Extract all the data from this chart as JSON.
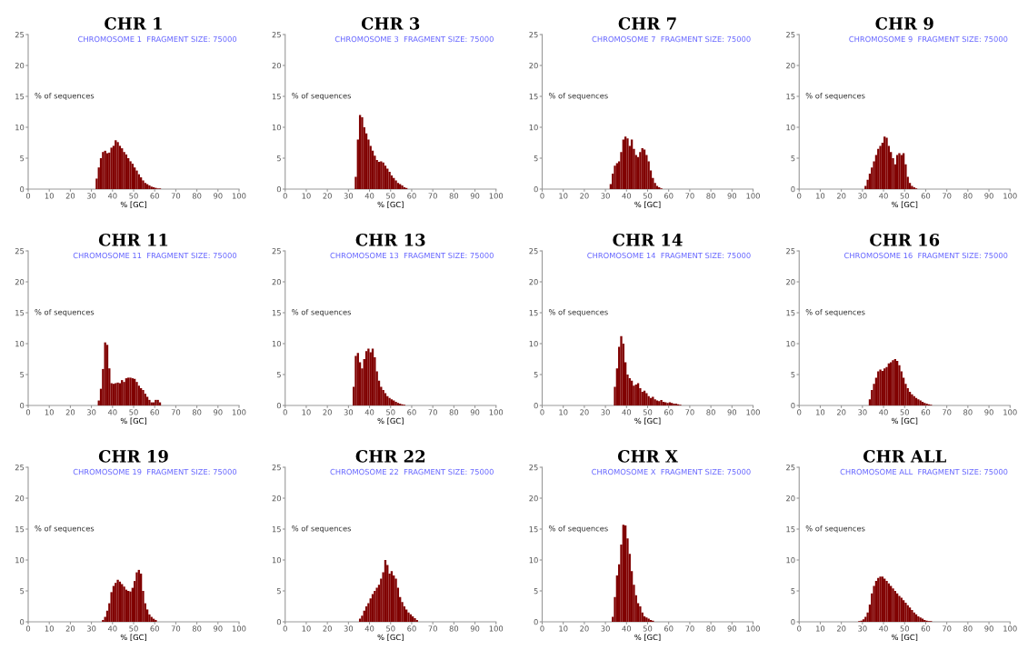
{
  "chart_data": [
    {
      "type": "histogram",
      "title": "CHR 1",
      "subtitle": "CHROMOSOME 1  FRAGMENT SIZE: 75000",
      "xlabel": "% [GC]",
      "ylabel": "% of sequences",
      "color": "#800000",
      "xlim": [
        0,
        100
      ],
      "xticks": [
        0,
        10,
        20,
        30,
        40,
        50,
        60,
        70,
        80,
        90,
        100
      ],
      "ylim": [
        0,
        25
      ],
      "yticks": [
        0,
        5,
        10,
        15,
        20,
        25
      ],
      "grid": false,
      "bins": [
        32,
        33,
        34,
        35,
        36,
        37,
        38,
        39,
        40,
        41,
        42,
        43,
        44,
        45,
        46,
        47,
        48,
        49,
        50,
        51,
        52,
        53,
        54,
        55,
        56,
        57,
        58,
        59,
        60,
        61,
        62,
        63
      ],
      "values": [
        1.7,
        3.5,
        5.0,
        6.0,
        6.2,
        5.8,
        5.9,
        6.7,
        7.0,
        7.9,
        7.6,
        7.0,
        6.6,
        6.0,
        5.6,
        5.0,
        4.5,
        4.1,
        3.5,
        3.0,
        2.4,
        1.9,
        1.4,
        1.0,
        0.8,
        0.6,
        0.4,
        0.3,
        0.2,
        0.1,
        0.1
      ]
    },
    {
      "type": "histogram",
      "title": "CHR 3",
      "subtitle": "CHROMOSOME 3  FRAGMENT SIZE: 75000",
      "xlabel": "% [GC]",
      "ylabel": "% of sequences",
      "color": "#800000",
      "xlim": [
        0,
        100
      ],
      "xticks": [
        0,
        10,
        20,
        30,
        40,
        50,
        60,
        70,
        80,
        90,
        100
      ],
      "ylim": [
        0,
        25
      ],
      "yticks": [
        0,
        5,
        10,
        15,
        20,
        25
      ],
      "grid": false,
      "bins": [
        33,
        34,
        35,
        36,
        37,
        38,
        39,
        40,
        41,
        42,
        43,
        44,
        45,
        46,
        47,
        48,
        49,
        50,
        51,
        52,
        53,
        54,
        55,
        56,
        57,
        58
      ],
      "values": [
        2.0,
        8.0,
        12.0,
        11.6,
        10.0,
        9.0,
        8.0,
        7.0,
        6.2,
        5.4,
        4.7,
        4.4,
        4.5,
        4.3,
        3.8,
        3.3,
        2.8,
        2.2,
        1.8,
        1.4,
        1.0,
        0.8,
        0.6,
        0.3,
        0.2
      ]
    },
    {
      "type": "histogram",
      "title": "CHR 7",
      "subtitle": "CHROMOSOME 7  FRAGMENT SIZE: 75000",
      "xlabel": "% [GC]",
      "ylabel": "% of sequences",
      "color": "#800000",
      "xlim": [
        0,
        100
      ],
      "xticks": [
        0,
        10,
        20,
        30,
        40,
        50,
        60,
        70,
        80,
        90,
        100
      ],
      "ylim": [
        0,
        25
      ],
      "yticks": [
        0,
        5,
        10,
        15,
        20,
        25
      ],
      "grid": false,
      "bins": [
        32,
        33,
        34,
        35,
        36,
        37,
        38,
        39,
        40,
        41,
        42,
        43,
        44,
        45,
        46,
        47,
        48,
        49,
        50,
        51,
        52,
        53,
        54,
        55,
        56,
        57
      ],
      "values": [
        0.8,
        2.5,
        3.8,
        4.2,
        4.5,
        6.0,
        8.0,
        8.5,
        8.2,
        7.0,
        8.0,
        6.5,
        5.5,
        5.2,
        6.0,
        6.6,
        6.4,
        5.5,
        4.5,
        3.0,
        1.8,
        1.0,
        0.5,
        0.3,
        0.1
      ]
    },
    {
      "type": "histogram",
      "title": "CHR 9",
      "subtitle": "CHROMOSOME 9  FRAGMENT SIZE: 75000",
      "xlabel": "% [GC]",
      "ylabel": "% of sequences",
      "color": "#800000",
      "xlim": [
        0,
        100
      ],
      "xticks": [
        0,
        10,
        20,
        30,
        40,
        50,
        60,
        70,
        80,
        90,
        100
      ],
      "ylim": [
        0,
        25
      ],
      "yticks": [
        0,
        5,
        10,
        15,
        20,
        25
      ],
      "grid": false,
      "bins": [
        31,
        32,
        33,
        34,
        35,
        36,
        37,
        38,
        39,
        40,
        41,
        42,
        43,
        44,
        45,
        46,
        47,
        48,
        49,
        50,
        51,
        52,
        53,
        54,
        55,
        56
      ],
      "values": [
        0.5,
        1.5,
        2.5,
        3.5,
        4.5,
        5.5,
        6.5,
        7.0,
        7.5,
        8.5,
        8.3,
        7.0,
        6.0,
        5.0,
        4.0,
        5.5,
        5.8,
        5.5,
        5.8,
        4.0,
        2.0,
        1.0,
        0.5,
        0.3,
        0.1
      ]
    },
    {
      "type": "histogram",
      "title": "CHR 11",
      "subtitle": "CHROMOSOME 11  FRAGMENT SIZE: 75000",
      "xlabel": "% [GC]",
      "ylabel": "% of sequences",
      "color": "#800000",
      "xlim": [
        0,
        100
      ],
      "xticks": [
        0,
        10,
        20,
        30,
        40,
        50,
        60,
        70,
        80,
        90,
        100
      ],
      "ylim": [
        0,
        25
      ],
      "yticks": [
        0,
        5,
        10,
        15,
        20,
        25
      ],
      "grid": false,
      "bins": [
        33,
        34,
        35,
        36,
        37,
        38,
        39,
        40,
        41,
        42,
        43,
        44,
        45,
        46,
        47,
        48,
        49,
        50,
        51,
        52,
        53,
        54,
        55,
        56,
        57,
        58,
        59,
        60,
        61,
        62,
        63
      ],
      "values": [
        0.8,
        2.7,
        5.9,
        10.2,
        9.8,
        6.0,
        3.6,
        3.5,
        3.6,
        3.7,
        3.6,
        4.1,
        3.8,
        4.4,
        4.5,
        4.5,
        4.4,
        4.3,
        3.8,
        3.2,
        2.8,
        2.5,
        1.9,
        1.4,
        0.9,
        0.5,
        0.5,
        0.9,
        0.9,
        0.5
      ]
    },
    {
      "type": "histogram",
      "title": "CHR 13",
      "subtitle": "CHROMOSOME 13  FRAGMENT SIZE: 75000",
      "xlabel": "% [GC]",
      "ylabel": "% of sequences",
      "color": "#800000",
      "xlim": [
        0,
        100
      ],
      "xticks": [
        0,
        10,
        20,
        30,
        40,
        50,
        60,
        70,
        80,
        90,
        100
      ],
      "ylim": [
        0,
        25
      ],
      "yticks": [
        0,
        5,
        10,
        15,
        20,
        25
      ],
      "grid": false,
      "bins": [
        32,
        33,
        34,
        35,
        36,
        37,
        38,
        39,
        40,
        41,
        42,
        43,
        44,
        45,
        46,
        47,
        48,
        49,
        50,
        51,
        52,
        53,
        54,
        55,
        56,
        57
      ],
      "values": [
        3.0,
        8.0,
        8.5,
        7.0,
        6.0,
        7.5,
        8.8,
        9.2,
        8.6,
        9.2,
        7.8,
        5.5,
        4.0,
        3.0,
        2.5,
        2.0,
        1.5,
        1.2,
        1.0,
        0.8,
        0.6,
        0.4,
        0.3,
        0.2,
        0.1
      ]
    },
    {
      "type": "histogram",
      "title": "CHR 14",
      "subtitle": "CHROMOSOME 14  FRAGMENT SIZE: 75000",
      "xlabel": "% [GC]",
      "ylabel": "% of sequences",
      "color": "#800000",
      "xlim": [
        0,
        100
      ],
      "xticks": [
        0,
        10,
        20,
        30,
        40,
        50,
        60,
        70,
        80,
        90,
        100
      ],
      "ylim": [
        0,
        25
      ],
      "yticks": [
        0,
        5,
        10,
        15,
        20,
        25
      ],
      "grid": false,
      "bins": [
        34,
        35,
        36,
        37,
        38,
        39,
        40,
        41,
        42,
        43,
        44,
        45,
        46,
        47,
        48,
        49,
        50,
        51,
        52,
        53,
        54,
        55,
        56,
        57,
        58,
        59,
        60,
        61,
        62,
        63,
        64,
        65,
        66
      ],
      "values": [
        3.0,
        6.0,
        9.5,
        11.2,
        10.0,
        7.0,
        5.0,
        4.4,
        4.0,
        3.2,
        3.4,
        3.6,
        2.8,
        2.2,
        2.4,
        2.0,
        1.5,
        1.2,
        1.4,
        1.0,
        0.8,
        0.7,
        0.9,
        0.6,
        0.5,
        0.4,
        0.5,
        0.4,
        0.3,
        0.3,
        0.2,
        0.1
      ]
    },
    {
      "type": "histogram",
      "title": "CHR 16",
      "subtitle": "CHROMOSOME 16  FRAGMENT SIZE: 75000",
      "xlabel": "% [GC]",
      "ylabel": "% of sequences",
      "color": "#800000",
      "xlim": [
        0,
        100
      ],
      "xticks": [
        0,
        10,
        20,
        30,
        40,
        50,
        60,
        70,
        80,
        90,
        100
      ],
      "ylim": [
        0,
        25
      ],
      "yticks": [
        0,
        5,
        10,
        15,
        20,
        25
      ],
      "grid": false,
      "bins": [
        33,
        34,
        35,
        36,
        37,
        38,
        39,
        40,
        41,
        42,
        43,
        44,
        45,
        46,
        47,
        48,
        49,
        50,
        51,
        52,
        53,
        54,
        55,
        56,
        57,
        58,
        59,
        60,
        61,
        62,
        63
      ],
      "values": [
        1.0,
        2.5,
        3.5,
        4.5,
        5.5,
        5.8,
        5.6,
        6.0,
        6.2,
        6.8,
        7.0,
        7.3,
        7.5,
        7.2,
        6.5,
        5.5,
        4.5,
        3.5,
        2.8,
        2.2,
        1.8,
        1.5,
        1.2,
        1.0,
        0.8,
        0.6,
        0.4,
        0.3,
        0.2,
        0.1
      ]
    },
    {
      "type": "histogram",
      "title": "CHR 19",
      "subtitle": "CHROMOSOME 19  FRAGMENT SIZE: 75000",
      "xlabel": "% [GC]",
      "ylabel": "% of sequences",
      "color": "#800000",
      "xlim": [
        0,
        100
      ],
      "xticks": [
        0,
        10,
        20,
        30,
        40,
        50,
        60,
        70,
        80,
        90,
        100
      ],
      "ylim": [
        0,
        25
      ],
      "yticks": [
        0,
        5,
        10,
        15,
        20,
        25
      ],
      "grid": false,
      "bins": [
        35,
        36,
        37,
        38,
        39,
        40,
        41,
        42,
        43,
        44,
        45,
        46,
        47,
        48,
        49,
        50,
        51,
        52,
        53,
        54,
        55,
        56,
        57,
        58,
        59,
        60,
        61
      ],
      "values": [
        0.3,
        0.8,
        1.8,
        3.0,
        4.8,
        5.8,
        6.3,
        6.8,
        6.5,
        6.1,
        5.7,
        5.2,
        5.0,
        4.9,
        5.5,
        6.6,
        8.0,
        8.4,
        7.8,
        5.0,
        3.0,
        2.0,
        1.2,
        0.8,
        0.5,
        0.3
      ]
    },
    {
      "type": "histogram",
      "title": "CHR 22",
      "subtitle": "CHROMOSOME 22  FRAGMENT SIZE: 75000",
      "xlabel": "% [GC]",
      "ylabel": "% of sequences",
      "color": "#800000",
      "xlim": [
        0,
        100
      ],
      "xticks": [
        0,
        10,
        20,
        30,
        40,
        50,
        60,
        70,
        80,
        90,
        100
      ],
      "ylim": [
        0,
        25
      ],
      "yticks": [
        0,
        5,
        10,
        15,
        20,
        25
      ],
      "grid": false,
      "bins": [
        35,
        36,
        37,
        38,
        39,
        40,
        41,
        42,
        43,
        44,
        45,
        46,
        47,
        48,
        49,
        50,
        51,
        52,
        53,
        54,
        55,
        56,
        57,
        58,
        59,
        60,
        61,
        62,
        63
      ],
      "values": [
        0.5,
        1.0,
        1.8,
        2.5,
        3.0,
        3.8,
        4.5,
        5.0,
        5.5,
        6.0,
        7.0,
        8.0,
        10.0,
        9.2,
        7.8,
        8.2,
        7.5,
        7.0,
        5.5,
        4.0,
        3.2,
        2.5,
        2.0,
        1.5,
        1.2,
        0.9,
        0.6,
        0.3
      ]
    },
    {
      "type": "histogram",
      "title": "CHR X",
      "subtitle": "CHROMOSOME X  FRAGMENT SIZE: 75000",
      "xlabel": "% [GC]",
      "ylabel": "% of sequences",
      "color": "#800000",
      "xlim": [
        0,
        100
      ],
      "xticks": [
        0,
        10,
        20,
        30,
        40,
        50,
        60,
        70,
        80,
        90,
        100
      ],
      "ylim": [
        0,
        25
      ],
      "yticks": [
        0,
        5,
        10,
        15,
        20,
        25
      ],
      "grid": false,
      "bins": [
        33,
        34,
        35,
        36,
        37,
        38,
        39,
        40,
        41,
        42,
        43,
        44,
        45,
        46,
        47,
        48,
        49,
        50,
        51,
        52,
        53
      ],
      "values": [
        0.8,
        4.0,
        7.5,
        9.3,
        12.5,
        15.7,
        15.6,
        13.5,
        11.0,
        8.2,
        6.0,
        4.3,
        3.0,
        2.5,
        1.5,
        0.9,
        0.7,
        0.5,
        0.3,
        0.2
      ]
    },
    {
      "type": "histogram",
      "title": "CHR ALL",
      "subtitle": "CHROMOSOME ALL  FRAGMENT SIZE: 75000",
      "xlabel": "% [GC]",
      "ylabel": "% of sequences",
      "color": "#800000",
      "xlim": [
        0,
        100
      ],
      "xticks": [
        0,
        10,
        20,
        30,
        40,
        50,
        60,
        70,
        80,
        90,
        100
      ],
      "ylim": [
        0,
        25
      ],
      "yticks": [
        0,
        5,
        10,
        15,
        20,
        25
      ],
      "grid": false,
      "bins": [
        28,
        29,
        30,
        31,
        32,
        33,
        34,
        35,
        36,
        37,
        38,
        39,
        40,
        41,
        42,
        43,
        44,
        45,
        46,
        47,
        48,
        49,
        50,
        51,
        52,
        53,
        54,
        55,
        56,
        57,
        58,
        59,
        60,
        61,
        62,
        63
      ],
      "values": [
        0.1,
        0.2,
        0.4,
        0.8,
        1.5,
        2.8,
        4.6,
        5.8,
        6.6,
        7.1,
        7.3,
        7.3,
        7.0,
        6.6,
        6.2,
        5.8,
        5.4,
        5.0,
        4.6,
        4.2,
        3.9,
        3.5,
        3.1,
        2.7,
        2.3,
        1.9,
        1.5,
        1.2,
        0.9,
        0.7,
        0.5,
        0.3,
        0.2,
        0.1,
        0.1
      ]
    }
  ]
}
